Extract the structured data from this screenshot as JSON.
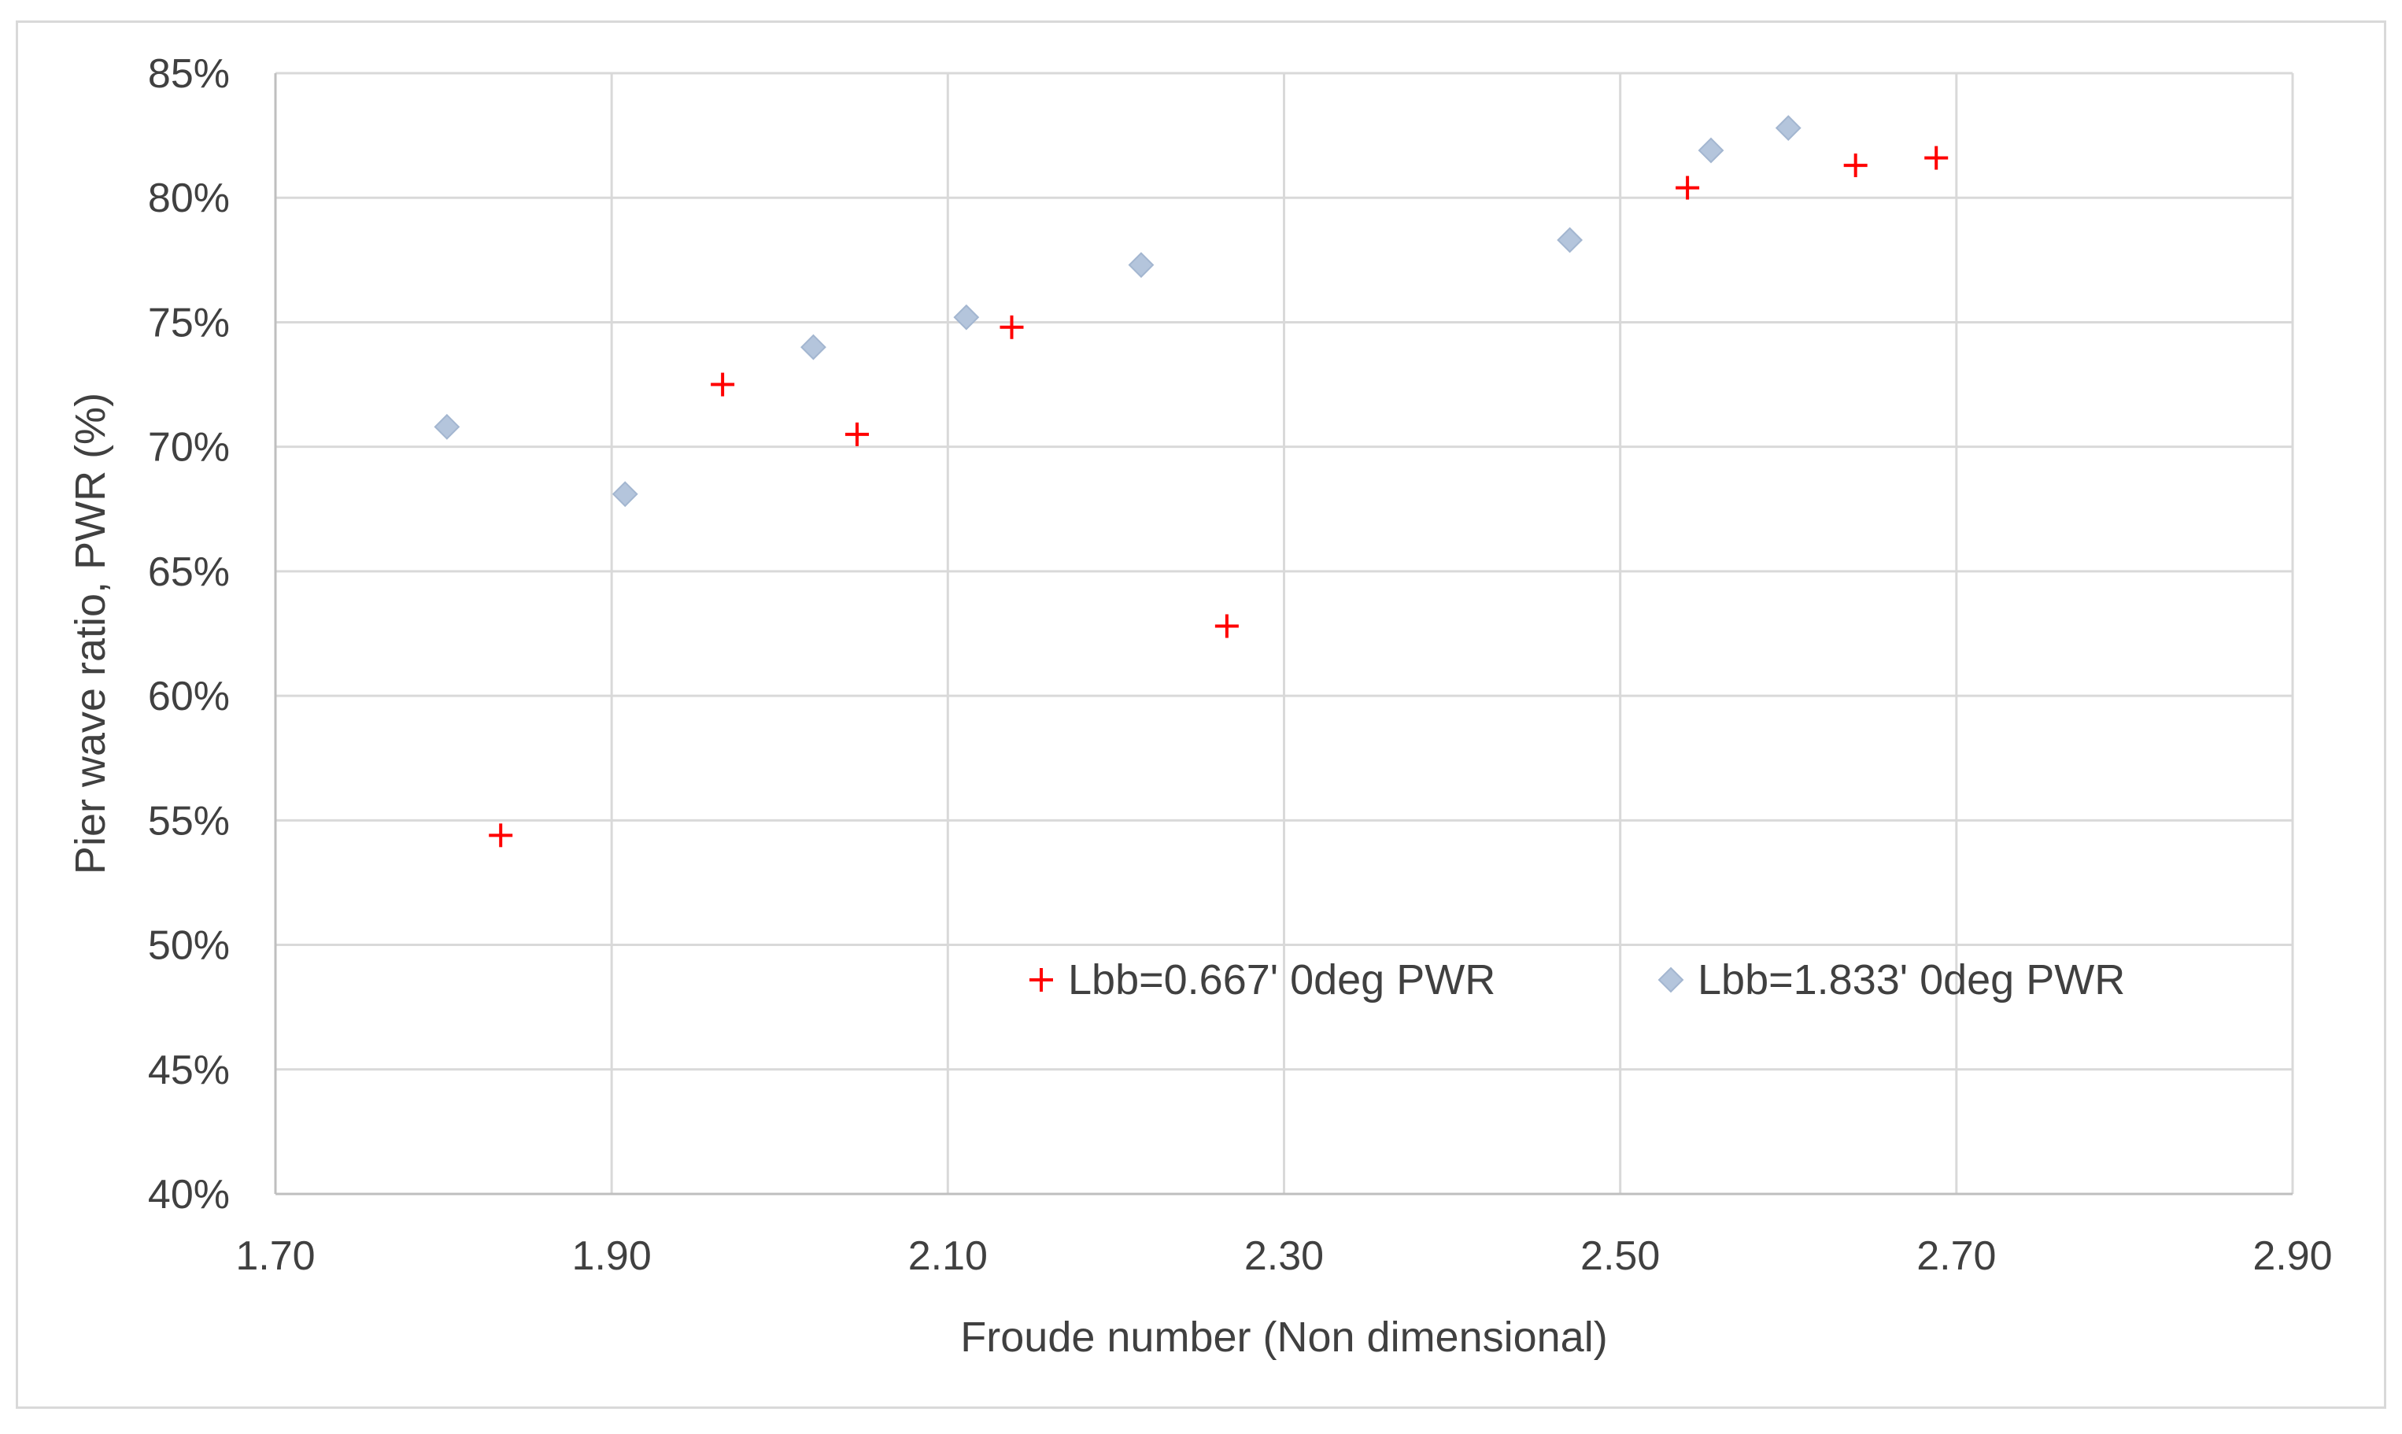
{
  "chart_data": {
    "type": "scatter",
    "title": "",
    "xlabel": "Froude number (Non dimensional)",
    "ylabel": "Pier wave ratio, PWR (%)",
    "xlim": [
      1.7,
      2.9
    ],
    "ylim": [
      40,
      85
    ],
    "x_ticks": [
      1.7,
      1.9,
      2.1,
      2.3,
      2.5,
      2.7,
      2.9
    ],
    "x_tick_labels": [
      "1.70",
      "1.90",
      "2.10",
      "2.30",
      "2.50",
      "2.70",
      "2.90"
    ],
    "y_ticks": [
      40,
      45,
      50,
      55,
      60,
      65,
      70,
      75,
      80,
      85
    ],
    "y_tick_labels": [
      "40%",
      "45%",
      "50%",
      "55%",
      "60%",
      "65%",
      "70%",
      "75%",
      "80%",
      "85%"
    ],
    "grid": true,
    "legend_position": "inside-lower-right",
    "series": [
      {
        "name": "Lbb=0.667' 0deg PWR",
        "marker": "plus",
        "color": "#ff0000",
        "points": [
          {
            "x": 1.834,
            "y": 54.4
          },
          {
            "x": 1.966,
            "y": 72.5
          },
          {
            "x": 2.046,
            "y": 70.5
          },
          {
            "x": 2.138,
            "y": 74.8
          },
          {
            "x": 2.266,
            "y": 62.8
          },
          {
            "x": 2.54,
            "y": 80.4
          },
          {
            "x": 2.64,
            "y": 81.3
          },
          {
            "x": 2.688,
            "y": 81.6
          }
        ]
      },
      {
        "name": "Lbb=1.833' 0deg PWR",
        "marker": "diamond",
        "color": "#b4c5dc",
        "points": [
          {
            "x": 1.802,
            "y": 70.8
          },
          {
            "x": 1.908,
            "y": 68.1
          },
          {
            "x": 2.02,
            "y": 74.0
          },
          {
            "x": 2.111,
            "y": 75.2
          },
          {
            "x": 2.215,
            "y": 77.3
          },
          {
            "x": 2.47,
            "y": 78.3
          },
          {
            "x": 2.554,
            "y": 81.9
          },
          {
            "x": 2.6,
            "y": 82.8
          }
        ]
      }
    ]
  }
}
